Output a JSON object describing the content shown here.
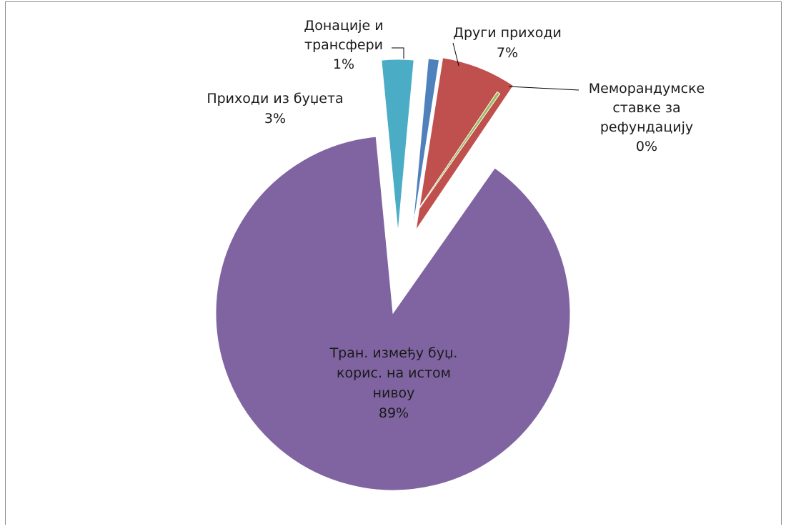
{
  "chart_data": {
    "type": "pie",
    "title": "",
    "exploded": true,
    "slices": [
      {
        "name": "Тран. између буџ. корис. на истом нивоу",
        "label_lines": [
          "Тран. између буџ.",
          "корис. на истом",
          "нивоу"
        ],
        "value": 89,
        "pct_label": "89%",
        "color": "#8064A2"
      },
      {
        "name": "Приходи из буџета",
        "label_lines": [
          "Приходи из буџета"
        ],
        "value": 3,
        "pct_label": "3%",
        "color": "#4BACC6"
      },
      {
        "name": "Донације и трансфери",
        "label_lines": [
          "Донације и",
          "трансфери"
        ],
        "value": 1,
        "pct_label": "1%",
        "color": "#4F81BD"
      },
      {
        "name": "Други приходи",
        "label_lines": [
          "Други приходи"
        ],
        "value": 7,
        "pct_label": "7%",
        "color": "#C0504D"
      },
      {
        "name": "Меморандумске ставке за рефундацију",
        "label_lines": [
          "Меморандумске",
          "ставке за",
          "рефундацију"
        ],
        "value": 0.3,
        "pct_label": "0%",
        "color": "#9BBB59"
      }
    ]
  }
}
